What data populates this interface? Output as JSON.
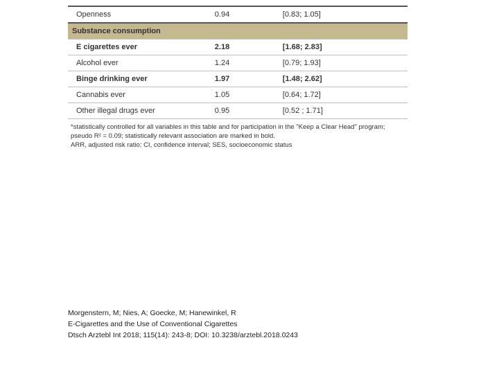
{
  "colors": {
    "header_bg": "#c4b88e",
    "row_border": "#bfbfbf",
    "top_border": "#555555",
    "text": "#333333",
    "background": "#ffffff"
  },
  "table": {
    "sections": [
      {
        "header": null,
        "rows": [
          {
            "label": "Openness",
            "arr": "0.94",
            "ci": "[0.83; 1.05]",
            "bold": false
          }
        ]
      },
      {
        "header": "Substance consumption",
        "rows": [
          {
            "label": "E cigarettes ever",
            "arr": "2.18",
            "ci": "[1.68; 2.83]",
            "bold": true
          },
          {
            "label": "Alcohol ever",
            "arr": "1.24",
            "ci": "[0.79; 1.93]",
            "bold": false
          },
          {
            "label": "Binge drinking ever",
            "arr": "1.97",
            "ci": "[1.48; 2.62]",
            "bold": true
          },
          {
            "label": "Cannabis ever",
            "arr": "1.05",
            "ci": "[0.64; 1.72]",
            "bold": false
          },
          {
            "label": "Other illegal drugs ever",
            "arr": "0.95",
            "ci": "[0.52 ; 1.71]",
            "bold": false
          }
        ]
      }
    ]
  },
  "footnote": {
    "line1": "*statistically controlled for all variables in this table and for participation in the \"Keep a Clear Head\" program; pseudo R² = 0.09; statistically relevant association are marked in bold.",
    "line2": "ARR, adjusted risk ratio; CI, confidence interval; SES, socioeconomic status"
  },
  "citation": {
    "authors": "Morgenstern, M; Nies, A; Goecke, M; Hanewinkel, R",
    "title": "E-Cigarettes and the Use of Conventional Cigarettes",
    "ref": "Dtsch Arztebl Int 2018; 115(14): 243-8; DOI: 10.3238/arztebl.2018.0243"
  }
}
